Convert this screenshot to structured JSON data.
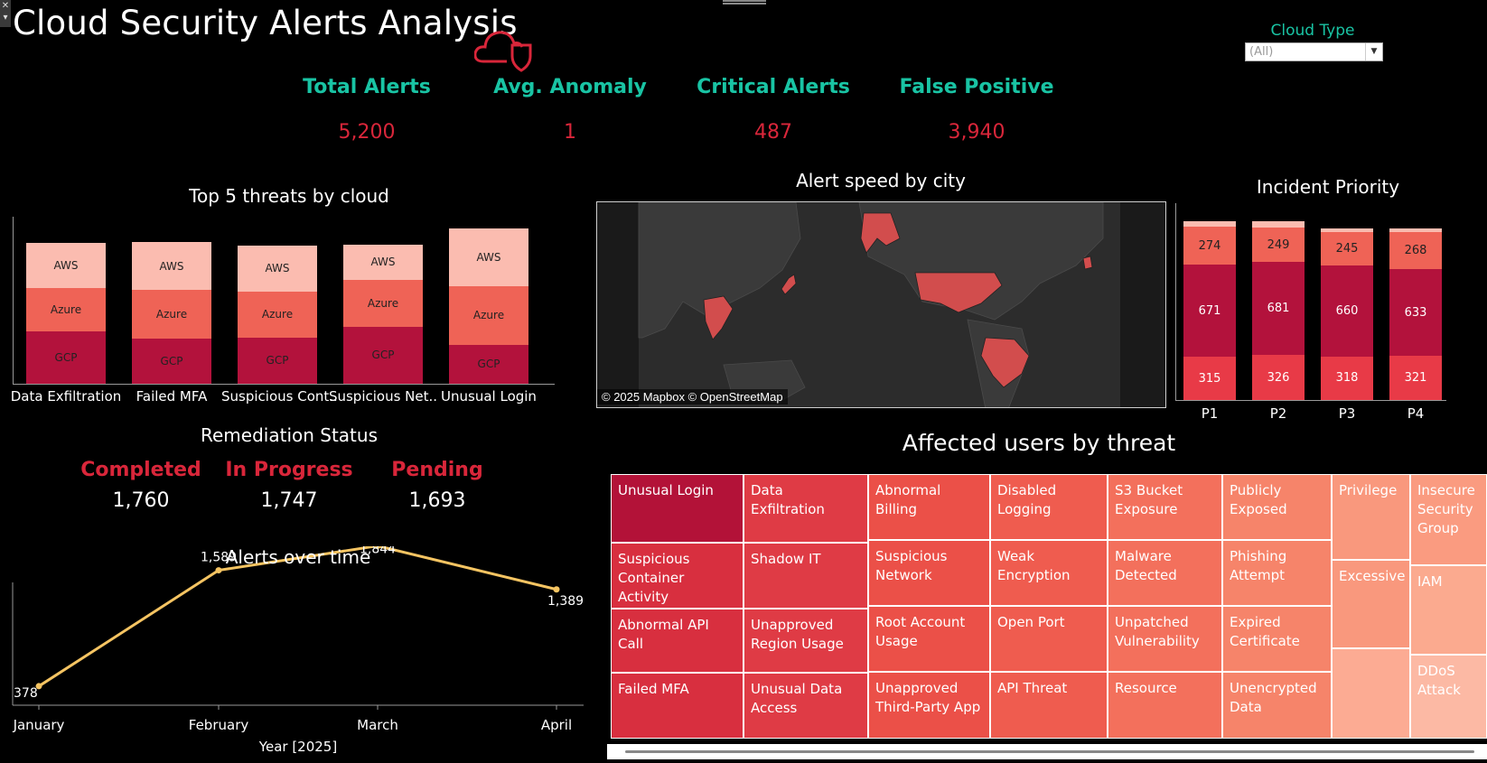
{
  "header": {
    "title": "Cloud Security Alerts Analysis",
    "filter_label": "Cloud Type",
    "filter_value": "(All)"
  },
  "kpis": [
    {
      "label": "Total Alerts",
      "value": "5,200"
    },
    {
      "label": "Avg. Anomaly",
      "value": "1"
    },
    {
      "label": "Critical Alerts",
      "value": "487"
    },
    {
      "label": "False Positive",
      "value": "3,940"
    }
  ],
  "colors": {
    "teal": "#19c4a4",
    "red": "#d9263a",
    "gcp": "#b3123c",
    "azure": "#ef6356",
    "aws": "#fbbcb0",
    "line": "#f5c462"
  },
  "threats_chart": {
    "title": "Top 5 threats by cloud",
    "series_labels": [
      "AWS",
      "Azure",
      "GCP"
    ]
  },
  "map": {
    "title": "Alert speed by city",
    "attribution": "© 2025 Mapbox © OpenStreetMap"
  },
  "priority_chart": {
    "title": "Incident Priority"
  },
  "remediation": {
    "title": "Remediation Status",
    "items": [
      {
        "label": "Completed",
        "value": "1,760"
      },
      {
        "label": "In Progress",
        "value": "1,747"
      },
      {
        "label": "Pending",
        "value": "1,693"
      }
    ]
  },
  "treemap": {
    "title": "Affected users by threat",
    "cells": [
      "Unusual Login",
      "Suspicious Container Activity",
      "Abnormal API Call",
      "Failed MFA",
      "Data Exfiltration",
      "Shadow IT",
      "Unapproved Region Usage",
      "Unusual Data Access",
      "Abnormal Billing",
      "Suspicious Network",
      "Root Account Usage",
      "Unapproved Third-Party App",
      "Disabled Logging",
      "Weak Encryption",
      "Open Port",
      "API Threat",
      "S3 Bucket Exposure",
      "Malware Detected",
      "Unpatched Vulnerability",
      "Resource",
      "Publicly Exposed",
      "Phishing Attempt",
      "Expired Certificate",
      "Unencrypted Data",
      "Privilege",
      "Excessive",
      "",
      "Insecure Security Group",
      "IAM",
      "DDoS Attack"
    ]
  },
  "chart_data": [
    {
      "type": "bar",
      "title": "Top 5 threats by cloud",
      "stacked": true,
      "categories": [
        "Data Exfiltration",
        "Failed MFA",
        "Suspicious Cont..",
        "Suspicious Net..",
        "Unusual Login"
      ],
      "series": [
        {
          "name": "GCP",
          "values": [
            73,
            62,
            64,
            79,
            54
          ]
        },
        {
          "name": "Azure",
          "values": [
            59,
            68,
            64,
            65,
            81
          ]
        },
        {
          "name": "AWS",
          "values": [
            63,
            66,
            63,
            49,
            80
          ]
        }
      ]
    },
    {
      "type": "bar",
      "title": "Incident Priority",
      "stacked": true,
      "categories": [
        "P1",
        "P2",
        "P3",
        "P4"
      ],
      "series": [
        {
          "values": [
            315,
            326,
            318,
            321
          ]
        },
        {
          "values": [
            671,
            681,
            660,
            633
          ]
        },
        {
          "values": [
            274,
            249,
            245,
            268
          ]
        },
        {
          "values": [
            45,
            45,
            30,
            30
          ]
        }
      ]
    },
    {
      "type": "line",
      "title": "Alerts over time",
      "xlabel": "Year [2025]",
      "x": [
        "January",
        "February",
        "March",
        "April"
      ],
      "values": [
        378,
        1589,
        1844,
        1389
      ]
    },
    {
      "type": "heatmap",
      "title": "Affected users by threat"
    }
  ]
}
